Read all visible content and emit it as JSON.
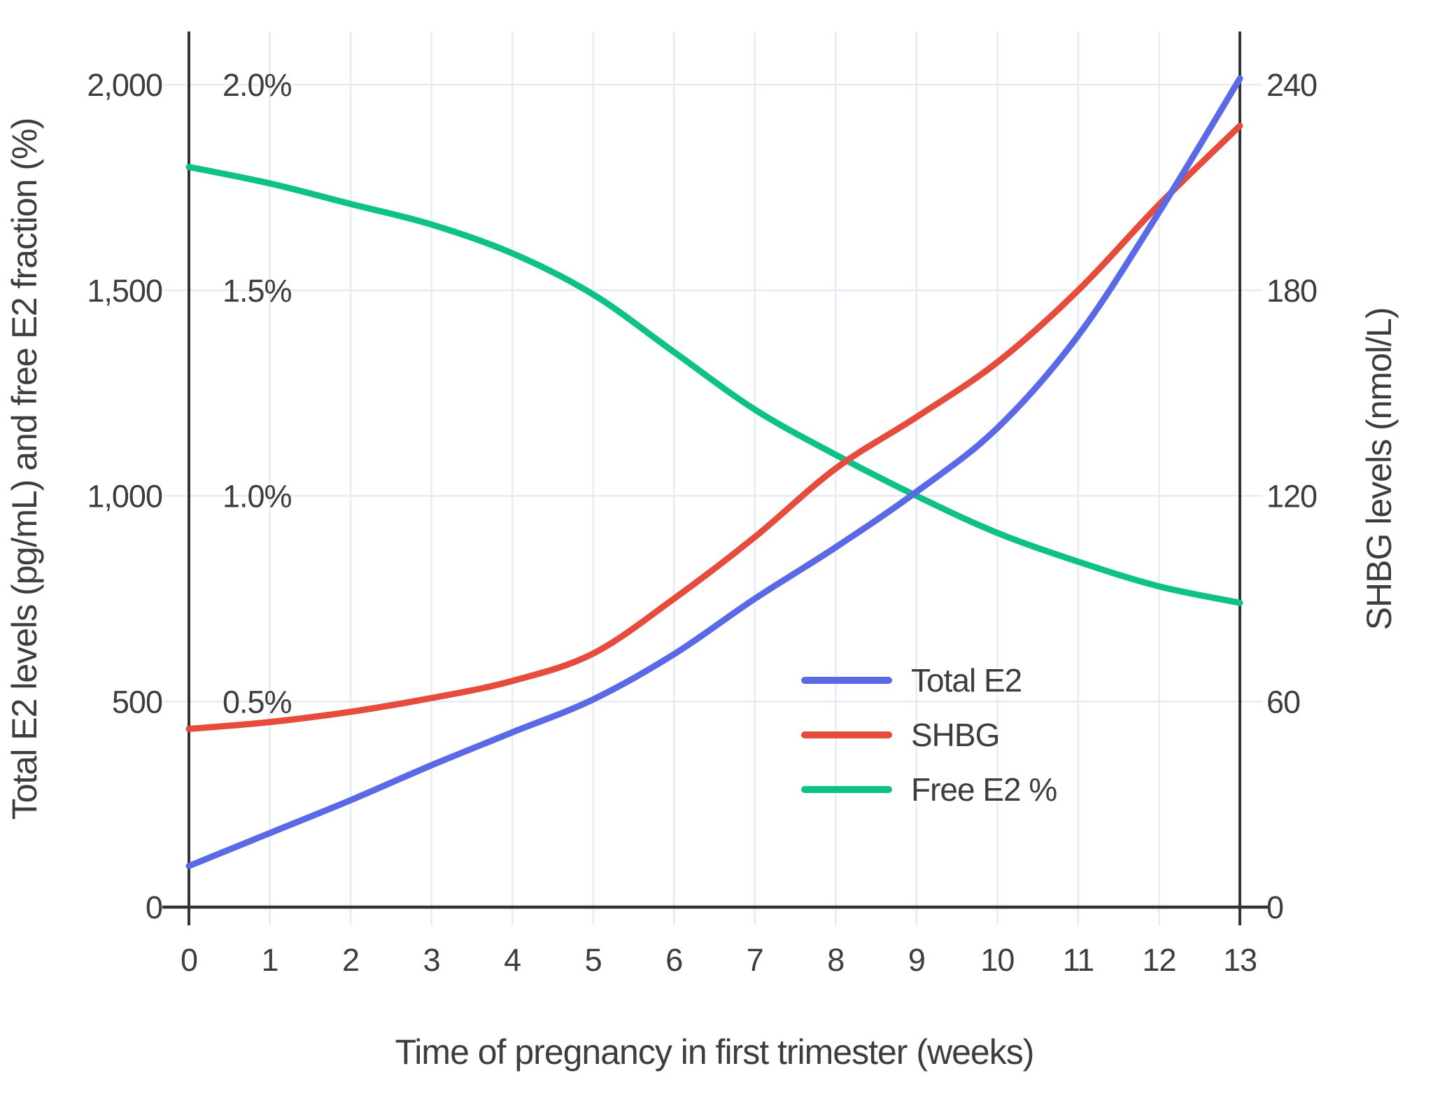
{
  "chart_data": {
    "type": "line",
    "x": [
      0,
      1,
      2,
      3,
      4,
      5,
      6,
      7,
      8,
      9,
      10,
      11,
      12,
      13
    ],
    "x_axis": {
      "label": "Time of pregnancy in first trimester (weeks)",
      "tick_labels": [
        "0",
        "1",
        "2",
        "3",
        "4",
        "5",
        "6",
        "7",
        "8",
        "9",
        "10",
        "11",
        "12",
        "13"
      ],
      "range": [
        0,
        13
      ]
    },
    "left_axis": {
      "label": "Total E2 levels (pg/mL) and free E2 fraction (%)",
      "tick_values": [
        0,
        500,
        1000,
        1500,
        2000
      ],
      "tick_labels": [
        "0",
        "500",
        "1,000",
        "1,500",
        "2,000"
      ],
      "range": [
        0,
        2000
      ]
    },
    "right_axis": {
      "label": "SHBG levels (nmol/L)",
      "tick_values": [
        0,
        60,
        120,
        180,
        240
      ],
      "tick_labels": [
        "0",
        "60",
        "120",
        "180",
        "240"
      ],
      "range": [
        0,
        240
      ]
    },
    "pct_annotations": {
      "values": [
        0.5,
        1.0,
        1.5,
        2.0
      ],
      "labels": [
        "0.5%",
        "1.0%",
        "1.5%",
        "2.0%"
      ]
    },
    "series": [
      {
        "name": "Free E2 %",
        "scale": "percent",
        "color": "#0EC186",
        "values": [
          1.8,
          1.76,
          1.71,
          1.66,
          1.59,
          1.49,
          1.35,
          1.21,
          1.1,
          1.0,
          0.91,
          0.84,
          0.78,
          0.74
        ]
      },
      {
        "name": "SHBG",
        "scale": "right",
        "color": "#E74B3C",
        "values": [
          52,
          54,
          57,
          61,
          66,
          74,
          90,
          108,
          128,
          143,
          159,
          180,
          205,
          228
        ]
      },
      {
        "name": "Total E2",
        "scale": "left",
        "color": "#5A69E6",
        "values": [
          100,
          180,
          260,
          345,
          425,
          505,
          615,
          750,
          875,
          1010,
          1165,
          1390,
          1690,
          2015
        ]
      }
    ],
    "legend": {
      "entries": [
        "Total E2",
        "SHBG",
        "Free E2 %"
      ],
      "position": "inside-bottom-right"
    },
    "grid": true,
    "colors": {
      "grid": "#E7EBF5",
      "axis": "#333333",
      "text": "#3D3D3D",
      "background": "#FFFFFF"
    }
  }
}
